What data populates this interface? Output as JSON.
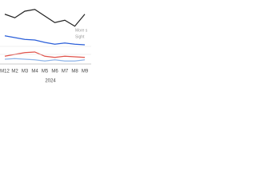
{
  "chart_data": {
    "type": "line",
    "categories": [
      "M12",
      "M2",
      "M3",
      "M4",
      "M5",
      "M6",
      "M7",
      "M8",
      "M9"
    ],
    "group_label": "2024",
    "annotations": [
      "More s",
      "Sight"
    ],
    "ylim": [
      0,
      100
    ],
    "grid_color": "#e3e3e3",
    "series": [
      {
        "color": "#222222",
        "values": [
          83,
          77,
          88,
          91,
          80,
          69,
          73,
          63,
          83
        ]
      },
      {
        "color": "#2b5fd9",
        "values": [
          47,
          44,
          41,
          40,
          36,
          33,
          35,
          33,
          32
        ]
      },
      {
        "color": "#e0524a",
        "values": [
          13,
          16,
          19,
          20,
          13,
          11,
          13,
          12,
          11
        ]
      },
      {
        "color": "#8fb4e8",
        "values": [
          8,
          9,
          8,
          7,
          5,
          7,
          5,
          5,
          7
        ]
      }
    ]
  }
}
